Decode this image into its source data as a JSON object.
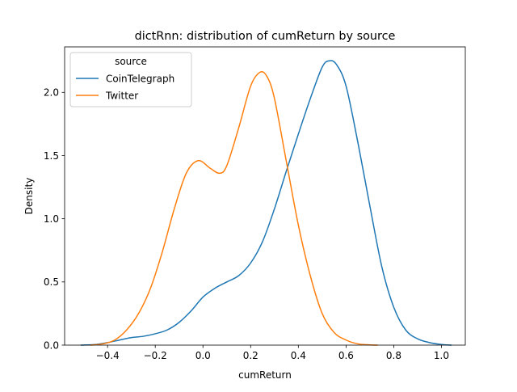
{
  "chart_data": {
    "type": "line",
    "title": "dictRnn: distribution of cumReturn by source",
    "xlabel": "cumReturn",
    "ylabel": "Density",
    "xlim": [
      -0.58,
      1.1
    ],
    "ylim": [
      0.0,
      2.36
    ],
    "xticks": [
      -0.4,
      -0.2,
      0.0,
      0.2,
      0.4,
      0.6,
      0.8,
      1.0
    ],
    "xtick_labels": [
      "−0.4",
      "−0.2",
      "0.0",
      "0.2",
      "0.4",
      "0.6",
      "0.8",
      "1.0"
    ],
    "yticks": [
      0.0,
      0.5,
      1.0,
      1.5,
      2.0
    ],
    "ytick_labels": [
      "0.0",
      "0.5",
      "1.0",
      "1.5",
      "2.0"
    ],
    "grid": false,
    "legend": {
      "title": "source",
      "placement": "top-left"
    },
    "series": [
      {
        "name": "CoinTelegraph",
        "color": "#1f77b4",
        "x": [
          -0.51,
          -0.45,
          -0.4,
          -0.35,
          -0.3,
          -0.25,
          -0.2,
          -0.15,
          -0.1,
          -0.05,
          0.0,
          0.05,
          0.1,
          0.15,
          0.2,
          0.25,
          0.3,
          0.35,
          0.4,
          0.45,
          0.5,
          0.53,
          0.56,
          0.6,
          0.65,
          0.7,
          0.75,
          0.8,
          0.85,
          0.9,
          0.95,
          1.0,
          1.04
        ],
        "y": [
          0.0,
          0.005,
          0.02,
          0.04,
          0.06,
          0.07,
          0.09,
          0.12,
          0.18,
          0.27,
          0.38,
          0.45,
          0.5,
          0.55,
          0.65,
          0.82,
          1.08,
          1.38,
          1.67,
          1.95,
          2.2,
          2.25,
          2.22,
          2.05,
          1.6,
          1.1,
          0.62,
          0.3,
          0.12,
          0.05,
          0.02,
          0.005,
          0.0
        ]
      },
      {
        "name": "Twitter",
        "color": "#ff7f0e",
        "x": [
          -0.47,
          -0.42,
          -0.37,
          -0.32,
          -0.27,
          -0.22,
          -0.17,
          -0.12,
          -0.07,
          -0.02,
          0.03,
          0.07,
          0.1,
          0.15,
          0.2,
          0.24,
          0.27,
          0.3,
          0.35,
          0.4,
          0.45,
          0.5,
          0.55,
          0.6,
          0.65,
          0.7,
          0.73
        ],
        "y": [
          0.0,
          0.01,
          0.04,
          0.12,
          0.25,
          0.45,
          0.74,
          1.08,
          1.36,
          1.46,
          1.4,
          1.36,
          1.42,
          1.72,
          2.05,
          2.16,
          2.12,
          1.95,
          1.45,
          0.95,
          0.55,
          0.25,
          0.1,
          0.04,
          0.01,
          0.002,
          0.0
        ]
      }
    ]
  }
}
